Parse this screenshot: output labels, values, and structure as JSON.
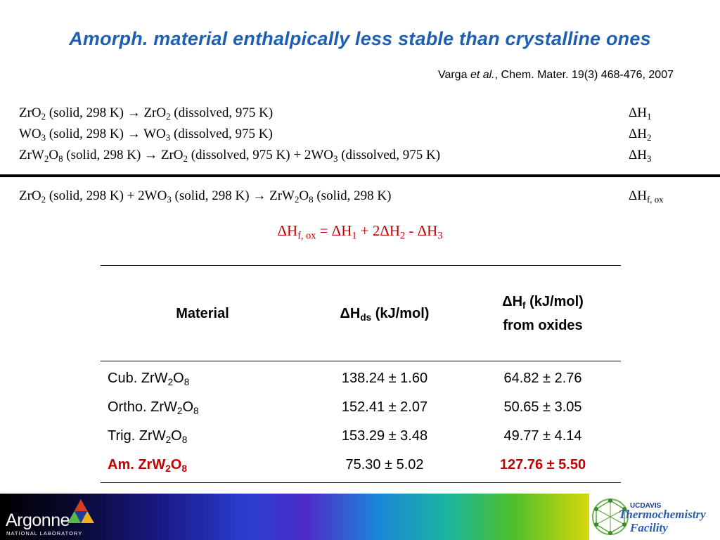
{
  "slide": {
    "title": "Amorph. material enthalpically less stable than crystalline ones",
    "citation": {
      "authors": "Varga",
      "etal": "et al.",
      "ref": ", Chem. Mater. 19(3) 468-476, 2007"
    }
  },
  "reactions": {
    "r1": {
      "a": "ZrO",
      "a_sub": "2",
      "b": " (solid, 298 K) ",
      "arrow": "→",
      "c": " ZrO",
      "c_sub": "2",
      "d": " (dissolved, 975 K)",
      "dh": "ΔH",
      "dh_sub": "1"
    },
    "r2": {
      "a": "WO",
      "a_sub": "3",
      "b": " (solid, 298 K) ",
      "arrow": "→",
      "c": " WO",
      "c_sub": "3",
      "d": " (dissolved, 975 K)",
      "dh": "ΔH",
      "dh_sub": "2"
    },
    "r3": {
      "a": "ZrW",
      "a_sub": "2",
      "a2": "O",
      "a2_sub": "8",
      "b": " (solid, 298 K) ",
      "arrow": "→",
      "c": " ZrO",
      "c_sub": "2",
      "d": " (dissolved, 975 K) + 2WO",
      "d_sub": "3",
      "e": " (dissolved, 975 K)",
      "dh": "ΔH",
      "dh_sub": "3"
    },
    "r4": {
      "a": "ZrO",
      "a_sub": "2",
      "b": " (solid, 298 K) + 2WO",
      "b_sub": "3",
      "c": " (solid, 298 K) ",
      "arrow": "→",
      "d": " ZrW",
      "d_sub": "2",
      "e": "O",
      "e_sub": "8",
      "f": " (solid, 298 K)",
      "dh": "ΔH",
      "dh_sub": "f, ox"
    }
  },
  "formula": {
    "p1": "ΔH",
    "p1_sub": "f, ox",
    "p2": " = ΔH",
    "p2_sub": "1",
    "p3": " + 2ΔH",
    "p3_sub": "2",
    "p4": " - ΔH",
    "p4_sub": "3"
  },
  "table": {
    "headers": {
      "material": "Material",
      "hds": "ΔH",
      "hds_sub": "ds",
      "hds_unit": " (kJ/mol)",
      "hf": "ΔH",
      "hf_sub": "f",
      "hf_unit": " (kJ/mol)",
      "hf_line2": "from oxides"
    },
    "rows": [
      {
        "pre": "Cub. ZrW",
        "s1": "2",
        "mid": "O",
        "s2": "8",
        "hds": "138.24 ± 1.60",
        "hf": "64.82 ± 2.76"
      },
      {
        "pre": "Ortho. ZrW",
        "s1": "2",
        "mid": "O",
        "s2": "8",
        "hds": "152.41 ± 2.07",
        "hf": "50.65 ± 3.05"
      },
      {
        "pre": "Trig. ZrW",
        "s1": "2",
        "mid": "O",
        "s2": "8",
        "hds": "153.29 ± 3.48",
        "hf": "49.77 ± 4.14"
      },
      {
        "pre": "Am. ZrW",
        "s1": "2",
        "mid": "O",
        "s2": "8",
        "hds": "75.30 ± 5.02",
        "hf": "127.76 ± 5.50"
      }
    ]
  },
  "footer": {
    "argonne": "Argonne",
    "argonne_sub": "NATIONAL LABORATORY",
    "ucd_small": "UCDAVIS",
    "ucd_line1": "Thermochemistry",
    "ucd_line2": "Facility"
  },
  "colors": {
    "title": "#1e5fb4",
    "highlight": "#c00000"
  }
}
